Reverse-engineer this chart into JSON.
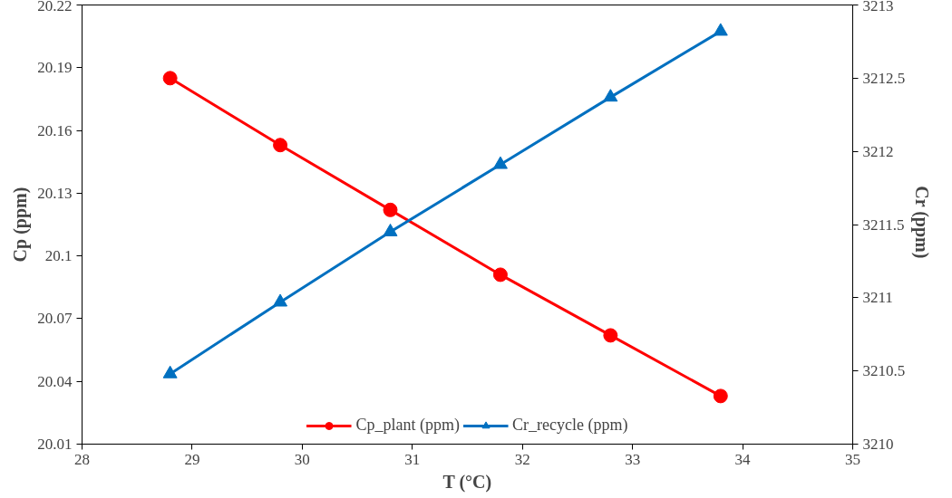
{
  "chart_data": {
    "type": "line",
    "xlabel": "T (°C)",
    "ylabel": "Cp (ppm)",
    "y2label": "Cr  (ppm)",
    "x": [
      28.8,
      29.8,
      30.8,
      31.8,
      32.8,
      33.8
    ],
    "series": [
      {
        "name": "Cp_plant (ppm)",
        "color": "#ff0000",
        "marker": "circle",
        "values": [
          20.185,
          20.153,
          20.122,
          20.091,
          20.062,
          20.033
        ]
      },
      {
        "name": "Cr_recycle (ppm)",
        "color": "#0070c0",
        "marker": "triangle",
        "axis": "y2",
        "values": [
          3210.48,
          3210.97,
          3211.45,
          3211.91,
          3212.37,
          3212.82
        ]
      }
    ],
    "xlim": [
      28,
      35
    ],
    "xticks": [
      28,
      29,
      30,
      31,
      32,
      33,
      34,
      35
    ],
    "ylim": [
      20.01,
      20.22
    ],
    "yticks": [
      20.01,
      20.04,
      20.07,
      20.1,
      20.13,
      20.16,
      20.19,
      20.22
    ],
    "y2lim": [
      3210,
      3213
    ],
    "y2ticks": [
      3210,
      3210.5,
      3211,
      3211.5,
      3212,
      3212.5,
      3213
    ],
    "grid": false,
    "legend": "bottom",
    "line_style": "solid"
  }
}
